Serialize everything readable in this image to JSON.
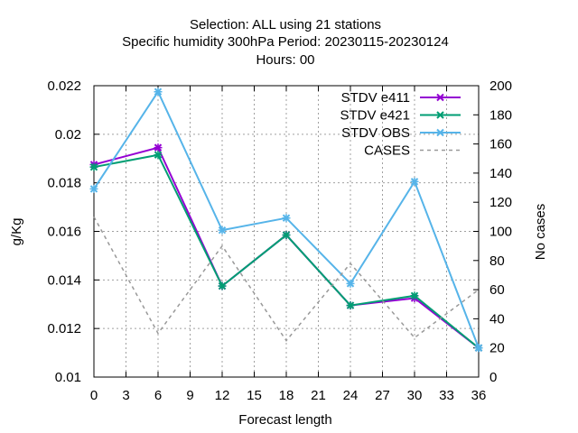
{
  "chart_data": {
    "type": "line",
    "title_lines": [
      "Selection: ALL using    21 stations",
      "Specific humidity 300hPa   Period: 20230115-20230124",
      "Hours:  00"
    ],
    "xlabel": "Forecast length",
    "ylabel": "g/Kg",
    "y2label": "No cases",
    "xlim": [
      0,
      36
    ],
    "ylim": [
      0.01,
      0.022
    ],
    "y2lim": [
      0,
      200
    ],
    "x_ticks": [
      0,
      3,
      6,
      9,
      12,
      15,
      18,
      21,
      24,
      27,
      30,
      33,
      36
    ],
    "y_ticks": [
      "0.01",
      "0.012",
      "0.014",
      "0.016",
      "0.018",
      "0.02",
      "0.022"
    ],
    "y2_ticks": [
      "0",
      "20",
      "40",
      "60",
      "80",
      "100",
      "120",
      "140",
      "160",
      "180",
      "200"
    ],
    "grid": true,
    "legend_position": "top-right",
    "x": [
      0,
      6,
      12,
      18,
      24,
      30,
      36
    ],
    "series": [
      {
        "name": "STDV e411",
        "color": "#9400d3",
        "axis": "y1",
        "style": "solid",
        "marker": "x",
        "values": [
          0.01875,
          0.01945,
          0.01375,
          0.01585,
          0.01295,
          0.01325,
          0.0112
        ]
      },
      {
        "name": "STDV e421",
        "color": "#009e73",
        "axis": "y1",
        "style": "solid",
        "marker": "x",
        "values": [
          0.01865,
          0.01915,
          0.01375,
          0.01585,
          0.01295,
          0.01335,
          0.0112
        ]
      },
      {
        "name": "STDV OBS",
        "color": "#56b4e9",
        "axis": "y1",
        "style": "solid",
        "marker": "x",
        "values": [
          0.01775,
          0.02175,
          0.01605,
          0.01655,
          0.01385,
          0.01805,
          0.0112
        ]
      },
      {
        "name": "CASES",
        "color": "#999999",
        "axis": "y2",
        "style": "dashed",
        "marker": "none",
        "values": [
          110,
          30,
          90,
          25,
          78,
          27,
          60
        ]
      }
    ]
  }
}
